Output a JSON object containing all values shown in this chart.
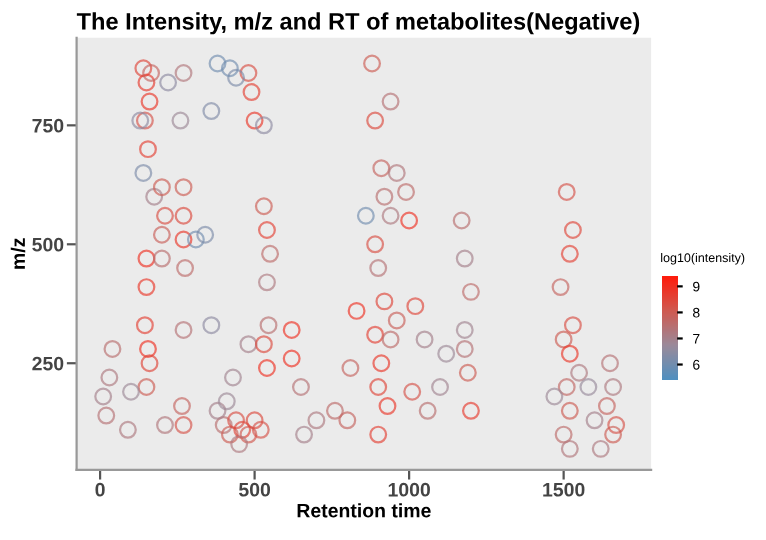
{
  "chart_data": {
    "type": "scatter",
    "title": "The Intensity, m/z and RT of metabolites(Negative)",
    "xlabel": "Retention time",
    "ylabel": "m/z",
    "clabel": "log10(intensity)",
    "xlim": [
      -76,
      1783
    ],
    "ylim": [
      26,
      934
    ],
    "xticks": [
      0,
      500,
      1000,
      1500
    ],
    "yticks": [
      250,
      500,
      750
    ],
    "clim": [
      5.4,
      9.4
    ],
    "cticks": [
      6,
      7,
      8,
      9
    ],
    "marker": "circle",
    "x": [
      140,
      150,
      160,
      145,
      155,
      140,
      150,
      150,
      145,
      155,
      160,
      150,
      165,
      130,
      175,
      200,
      210,
      200,
      200,
      270,
      270,
      270,
      275,
      270,
      265,
      270,
      210,
      270,
      260,
      310,
      340,
      220,
      400,
      420,
      440,
      460,
      480,
      500,
      520,
      380,
      450,
      410,
      360,
      480,
      430,
      480,
      490,
      500,
      440,
      420,
      360,
      380,
      530,
      530,
      540,
      550,
      540,
      545,
      540,
      530,
      620,
      620,
      650,
      660,
      700,
      760,
      810,
      830,
      800,
      880,
      890,
      910,
      920,
      940,
      890,
      900,
      920,
      890,
      910,
      900,
      930,
      900,
      940,
      940,
      860,
      960,
      960,
      990,
      1000,
      1020,
      1010,
      1050,
      1060,
      1100,
      1120,
      1170,
      1180,
      1200,
      1180,
      1190,
      1200,
      1180,
      1510,
      1530,
      1520,
      1490,
      1500,
      1520,
      1530,
      1510,
      1520,
      1500,
      1520,
      1470,
      1550,
      1650,
      1660,
      1640,
      1670,
      1660,
      1600,
      1620,
      1580,
      20,
      30,
      40,
      10,
      90,
      100
    ],
    "values": [
      870,
      840,
      800,
      760,
      700,
      650,
      470,
      410,
      330,
      280,
      250,
      200,
      860,
      760,
      600,
      620,
      560,
      520,
      470,
      620,
      560,
      510,
      450,
      320,
      160,
      120,
      120,
      860,
      760,
      510,
      520,
      840,
      120,
      100,
      130,
      110,
      100,
      130,
      110,
      150,
      80,
      170,
      330,
      290,
      220,
      860,
      820,
      760,
      850,
      870,
      780,
      880,
      750,
      580,
      530,
      480,
      420,
      330,
      240,
      290,
      320,
      260,
      200,
      100,
      130,
      150,
      240,
      360,
      130,
      880,
      760,
      660,
      600,
      560,
      500,
      450,
      380,
      310,
      250,
      200,
      160,
      100,
      300,
      800,
      560,
      340,
      650,
      610,
      550,
      370,
      190,
      300,
      150,
      200,
      270,
      550,
      470,
      400,
      280,
      230,
      150,
      320,
      610,
      530,
      480,
      410,
      300,
      270,
      330,
      200,
      150,
      100,
      70,
      180,
      230,
      250,
      200,
      160,
      120,
      100,
      130,
      70,
      200,
      140,
      220,
      280,
      180,
      110,
      190
    ],
    "cvalues": [
      8.5,
      8.7,
      8.8,
      8.2,
      8.6,
      6.2,
      8.9,
      8.8,
      8.6,
      8.9,
      8.5,
      8.0,
      7.8,
      6.5,
      7.0,
      8.0,
      8.3,
      7.9,
      7.5,
      8.0,
      8.4,
      8.8,
      7.6,
      7.4,
      7.8,
      8.2,
      7.3,
      7.3,
      6.8,
      6.0,
      6.2,
      6.5,
      7.5,
      8.0,
      8.3,
      8.5,
      8.1,
      8.4,
      8.2,
      7.0,
      7.2,
      6.8,
      6.5,
      7.0,
      6.9,
      8.3,
      8.6,
      8.8,
      6.2,
      6.0,
      6.3,
      6.0,
      6.5,
      8.0,
      8.6,
      7.6,
      7.2,
      7.5,
      8.9,
      8.4,
      8.9,
      8.9,
      7.4,
      7.0,
      7.2,
      7.6,
      7.8,
      8.9,
      7.8,
      8.0,
      8.4,
      7.8,
      7.5,
      7.2,
      8.3,
      7.4,
      8.5,
      8.6,
      8.8,
      8.5,
      8.8,
      8.6,
      7.6,
      7.4,
      6.0,
      7.9,
      7.3,
      7.6,
      8.9,
      8.5,
      8.2,
      7.0,
      7.5,
      6.9,
      6.8,
      7.5,
      7.0,
      7.6,
      7.4,
      8.0,
      8.7,
      6.9,
      8.2,
      8.5,
      8.6,
      7.8,
      8.0,
      8.8,
      8.3,
      7.7,
      8.0,
      7.6,
      7.3,
      6.8,
      7.2,
      7.4,
      7.2,
      7.8,
      8.2,
      8.0,
      7.0,
      7.2,
      6.7,
      7.4,
      7.2,
      7.5,
      7.0,
      7.2,
      6.8
    ]
  }
}
